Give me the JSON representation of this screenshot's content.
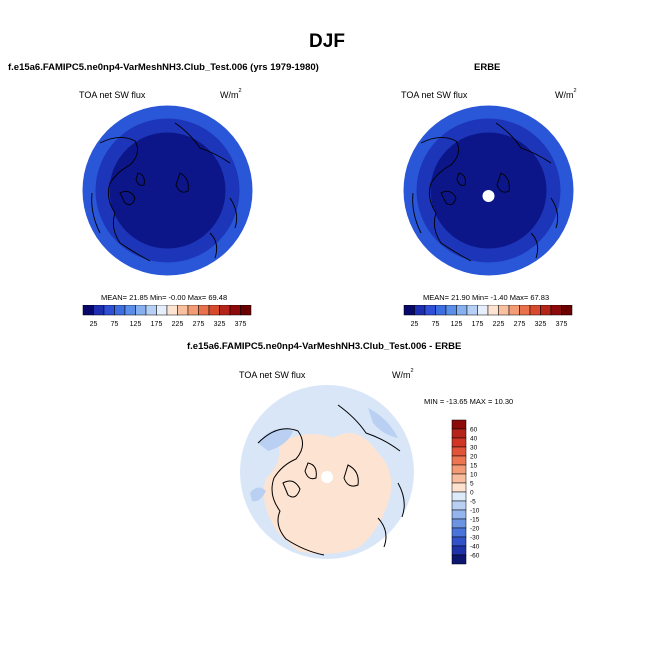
{
  "main_title": "DJF",
  "panels": {
    "model": {
      "title": "f.e15a6.FAMIPC5.ne0np4-VarMeshNH3.Club_Test.006 (yrs 1979-1980)",
      "field": "TOA net SW flux",
      "units": "W/m",
      "units_sup": "2",
      "stats": "MEAN=  21.85  Min=  -0.00  Max=  69.48"
    },
    "obs": {
      "title": "ERBE",
      "field": "TOA net SW flux",
      "units": "W/m",
      "units_sup": "2",
      "stats": "MEAN=  21.90  Min=  -1.40  Max=  67.83"
    },
    "diff": {
      "title": "f.e15a6.FAMIPC5.ne0np4-VarMeshNH3.Club_Test.006 - ERBE",
      "field": "TOA net SW flux",
      "units": "W/m",
      "units_sup": "2",
      "stats": "MIN = -13.65 MAX =  10.30"
    }
  },
  "colorbar_abs": {
    "labels": [
      "25",
      "75",
      "125",
      "175",
      "225",
      "275",
      "325",
      "375"
    ],
    "colors": [
      "#08086b",
      "#1d2fb0",
      "#2f4fd6",
      "#3d6ee0",
      "#5a8ee8",
      "#86b0ef",
      "#b6cff4",
      "#e6eefb",
      "#fde4d2",
      "#f9c0a0",
      "#f29b74",
      "#e8714b",
      "#d84a2c",
      "#b52418",
      "#8c0a0a",
      "#6b0000"
    ]
  },
  "colorbar_diff": {
    "labels": [
      "60",
      "40",
      "30",
      "20",
      "15",
      "10",
      "5",
      "0",
      "-5",
      "-10",
      "-15",
      "-20",
      "-30",
      "-40",
      "-60"
    ],
    "colors": [
      "#8c0a0a",
      "#b52418",
      "#d03526",
      "#e0553a",
      "#ec7652",
      "#f39a77",
      "#f8bc9f",
      "#fde2d0",
      "#ddeaf9",
      "#b9d0f3",
      "#93b4ec",
      "#6c94e3",
      "#4a74da",
      "#3152c8",
      "#1f33a8",
      "#0c1570"
    ]
  },
  "maps": {
    "fill_colors": {
      "outer_ring": "#2a56d8",
      "mid_ring": "#1d35b8",
      "interior": "#0c1688",
      "diff_ocean": "#d8e6f8",
      "diff_land": "#fde3d2"
    }
  }
}
